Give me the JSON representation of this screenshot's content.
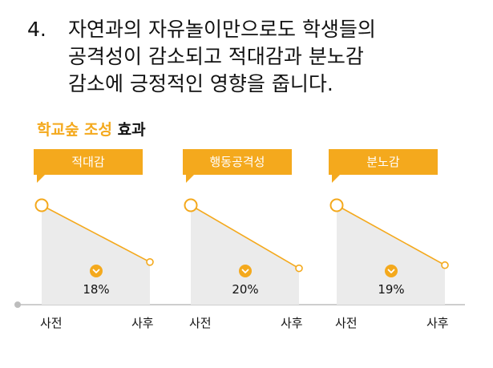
{
  "heading": {
    "number": "4.",
    "lines": [
      "자연과의 자유놀이만으로도 학생들의",
      "공격성이 감소되고 적대감과 분노감",
      "감소에 긍정적인 영향을 줍니다."
    ]
  },
  "subtitle": {
    "accent": "학교숲 조성",
    "plain": "효과"
  },
  "colors": {
    "accent": "#F4A91D",
    "area": "#EBEBEB",
    "axis": "#BDBDBD"
  },
  "icons": {
    "change_marker": "chevron-down-icon"
  },
  "chart_data": [
    {
      "type": "line",
      "title": "적대감",
      "x": [
        "사전",
        "사후"
      ],
      "series": [
        {
          "values": [
            1.0,
            0.82
          ]
        }
      ],
      "change_label": "18%",
      "change_percent": 18
    },
    {
      "type": "line",
      "title": "행동공격성",
      "x": [
        "사전",
        "사후"
      ],
      "series": [
        {
          "values": [
            1.0,
            0.8
          ]
        }
      ],
      "change_label": "20%",
      "change_percent": 20
    },
    {
      "type": "line",
      "title": "분노감",
      "x": [
        "사전",
        "사후"
      ],
      "series": [
        {
          "values": [
            1.0,
            0.81
          ]
        }
      ],
      "change_label": "19%",
      "change_percent": 19
    }
  ]
}
